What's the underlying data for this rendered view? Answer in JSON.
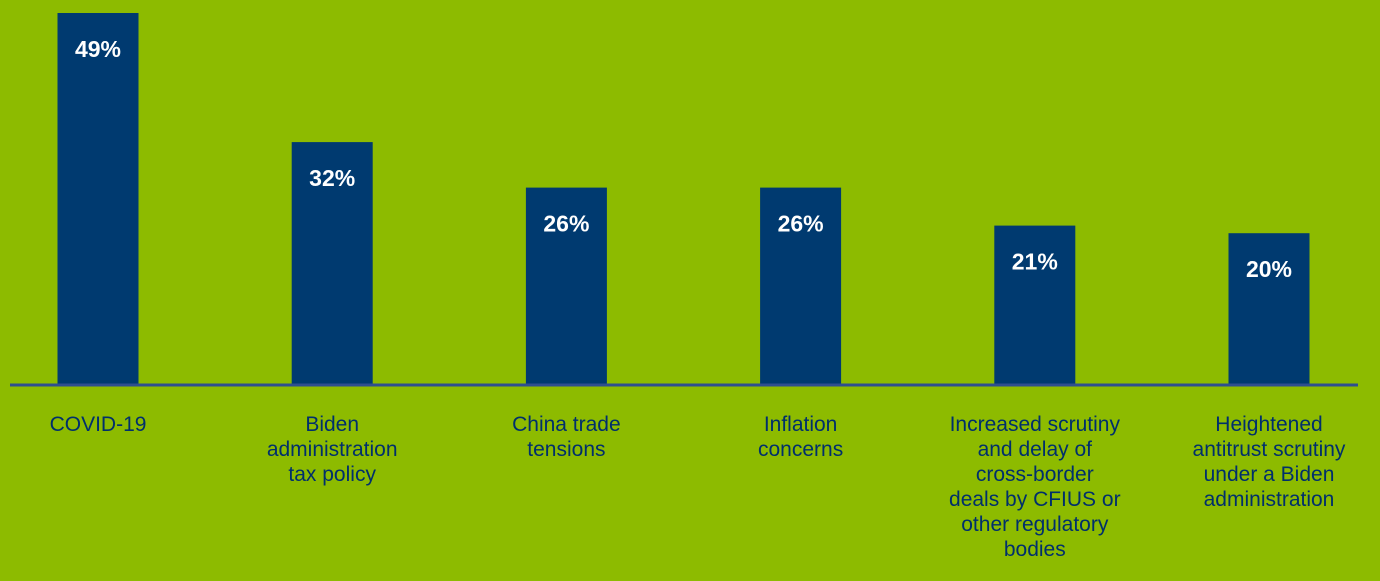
{
  "chart_data": {
    "type": "bar",
    "categories": [
      [
        "COVID-19"
      ],
      [
        "Biden",
        "administration",
        "tax policy"
      ],
      [
        "China trade",
        "tensions"
      ],
      [
        "Inflation",
        "concerns"
      ],
      [
        "Increased scrutiny",
        "and delay of",
        "cross-border",
        "deals by CFIUS or",
        "other regulatory",
        "bodies"
      ],
      [
        "Heightened",
        "antitrust scrutiny",
        "under a Biden",
        "administration"
      ]
    ],
    "values": [
      49,
      32,
      26,
      26,
      21,
      20
    ],
    "value_labels": [
      "49%",
      "32%",
      "26%",
      "26%",
      "21%",
      "20%"
    ],
    "unit": "%",
    "ylim": [
      0,
      49
    ],
    "grid": false,
    "legend": "none",
    "colors": {
      "background": "#8dbb00",
      "bar": "#003a70",
      "axis": "#2e4f8f",
      "label_text": "#002f6c",
      "value_text": "#ffffff"
    }
  }
}
